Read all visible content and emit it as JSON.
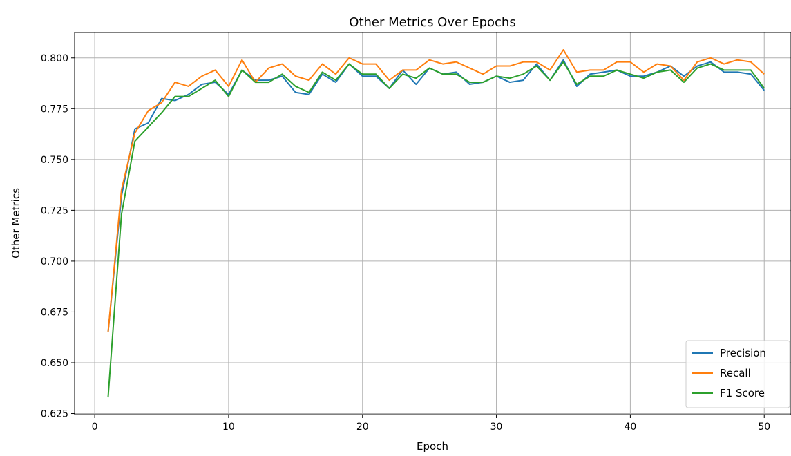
{
  "chart_data": {
    "type": "line",
    "title": "Other Metrics Over Epochs",
    "xlabel": "Epoch",
    "ylabel": "Other Metrics",
    "xlim": [
      -1.5,
      52
    ],
    "ylim": [
      0.6245,
      0.8125
    ],
    "xticks": [
      0,
      10,
      20,
      30,
      40,
      50
    ],
    "yticks": [
      0.625,
      0.65,
      0.675,
      0.7,
      0.725,
      0.75,
      0.775,
      0.8
    ],
    "ytick_labels": [
      "0.625",
      "0.650",
      "0.675",
      "0.700",
      "0.725",
      "0.750",
      "0.775",
      "0.800"
    ],
    "grid": true,
    "legend_position": "lower right",
    "x": [
      1,
      2,
      3,
      4,
      5,
      6,
      7,
      8,
      9,
      10,
      11,
      12,
      13,
      14,
      15,
      16,
      17,
      18,
      19,
      20,
      21,
      22,
      23,
      24,
      25,
      26,
      27,
      28,
      29,
      30,
      31,
      32,
      33,
      34,
      35,
      36,
      37,
      38,
      39,
      40,
      41,
      42,
      43,
      44,
      45,
      46,
      47,
      48,
      49,
      50
    ],
    "series": [
      {
        "name": "Precision",
        "color": "#1f77b4",
        "values": [
          0.665,
          0.732,
          0.765,
          0.768,
          0.78,
          0.779,
          0.782,
          0.787,
          0.788,
          0.782,
          0.794,
          0.789,
          0.789,
          0.791,
          0.783,
          0.782,
          0.792,
          0.788,
          0.797,
          0.791,
          0.791,
          0.785,
          0.794,
          0.787,
          0.795,
          0.792,
          0.793,
          0.787,
          0.788,
          0.791,
          0.788,
          0.789,
          0.797,
          0.789,
          0.799,
          0.786,
          0.792,
          0.793,
          0.794,
          0.791,
          0.791,
          0.793,
          0.796,
          0.791,
          0.796,
          0.798,
          0.793,
          0.793,
          0.792,
          0.784
        ]
      },
      {
        "name": "Recall",
        "color": "#ff7f0e",
        "values": [
          0.665,
          0.735,
          0.763,
          0.774,
          0.778,
          0.788,
          0.786,
          0.791,
          0.794,
          0.786,
          0.799,
          0.788,
          0.795,
          0.797,
          0.791,
          0.789,
          0.797,
          0.792,
          0.8,
          0.797,
          0.797,
          0.789,
          0.794,
          0.794,
          0.799,
          0.797,
          0.798,
          0.795,
          0.792,
          0.796,
          0.796,
          0.798,
          0.798,
          0.794,
          0.804,
          0.793,
          0.794,
          0.794,
          0.798,
          0.798,
          0.793,
          0.797,
          0.796,
          0.789,
          0.798,
          0.8,
          0.797,
          0.799,
          0.798,
          0.792
        ]
      },
      {
        "name": "F1 Score",
        "color": "#2ca02c",
        "values": [
          0.633,
          0.723,
          0.759,
          0.766,
          0.773,
          0.781,
          0.781,
          0.785,
          0.789,
          0.781,
          0.794,
          0.788,
          0.788,
          0.792,
          0.786,
          0.783,
          0.793,
          0.789,
          0.797,
          0.792,
          0.792,
          0.785,
          0.792,
          0.79,
          0.795,
          0.792,
          0.792,
          0.788,
          0.788,
          0.791,
          0.79,
          0.792,
          0.796,
          0.789,
          0.798,
          0.787,
          0.791,
          0.791,
          0.794,
          0.792,
          0.79,
          0.793,
          0.794,
          0.788,
          0.795,
          0.797,
          0.794,
          0.794,
          0.794,
          0.785
        ]
      }
    ]
  }
}
